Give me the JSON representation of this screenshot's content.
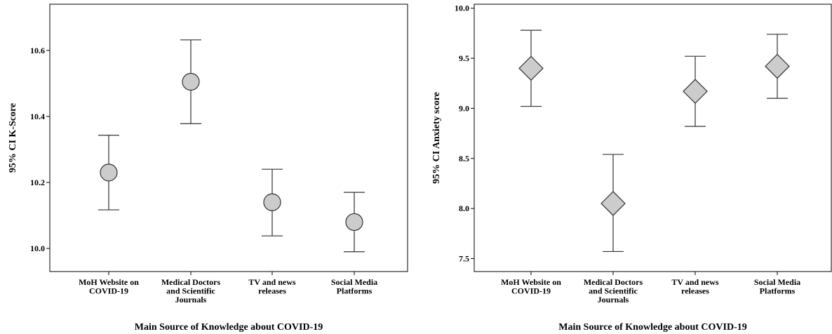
{
  "chart_data": [
    {
      "type": "errorbar",
      "marker": "circle",
      "xlabel": "Main Source of Knowledge about COVID-19",
      "ylabel": "95% CI K-Score",
      "ylim": [
        9.93,
        10.74
      ],
      "yticks": [
        "10.0",
        "10.2",
        "10.4",
        "10.6"
      ],
      "categories": [
        [
          "MoH Website on",
          "COVID-19"
        ],
        [
          "Medical Doctors",
          "and Scientific",
          "Journals"
        ],
        [
          "TV and news",
          "releases"
        ],
        [
          "Social Media",
          "Platforms"
        ]
      ],
      "means": [
        10.23,
        10.505,
        10.14,
        10.08
      ],
      "lower": [
        10.117,
        10.378,
        10.038,
        9.99
      ],
      "upper": [
        10.343,
        10.632,
        10.24,
        10.17
      ],
      "marker_fill": "#cccccc",
      "stroke": "#333333"
    },
    {
      "type": "errorbar",
      "marker": "diamond",
      "xlabel": "Main Source of Knowledge about COVID-19",
      "ylabel": "95% CI Anxiety score",
      "ylim": [
        7.37,
        10.04
      ],
      "yticks": [
        "7.5",
        "8.0",
        "8.5",
        "9.0",
        "9.5",
        "10.0"
      ],
      "categories": [
        [
          "MoH Website on",
          "COVID-19"
        ],
        [
          "Medical Doctors",
          "and Scientific",
          "Journals"
        ],
        [
          "TV and news",
          "releases"
        ],
        [
          "Social Media",
          "Platforms"
        ]
      ],
      "means": [
        9.4,
        8.05,
        9.17,
        9.42
      ],
      "lower": [
        9.02,
        7.57,
        8.82,
        9.1
      ],
      "upper": [
        9.78,
        8.54,
        9.52,
        9.74
      ],
      "marker_fill": "#cccccc",
      "stroke": "#333333"
    }
  ]
}
